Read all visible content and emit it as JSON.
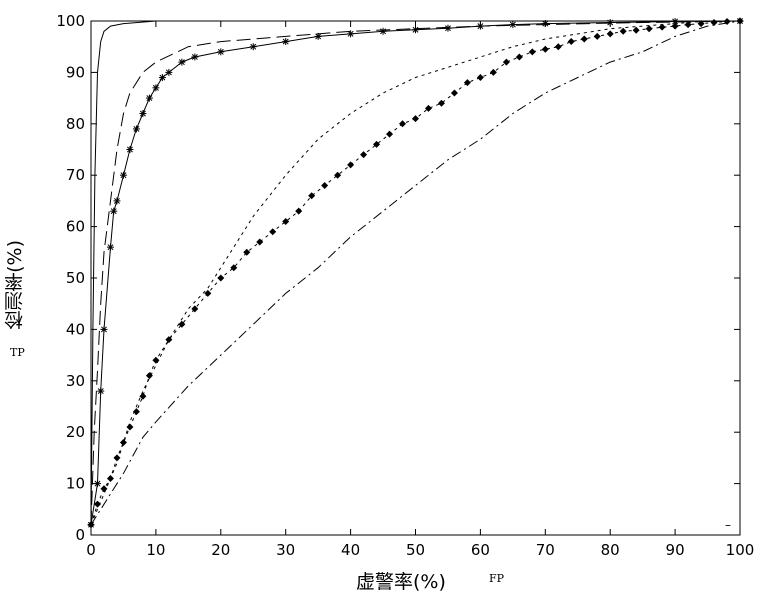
{
  "chart_data": {
    "type": "line",
    "xlabel": "虚警率(%)",
    "ylabel": "检测率(%)",
    "x_note": "FP",
    "y_note": "TP",
    "xlim": [
      0,
      100
    ],
    "ylim": [
      0,
      100
    ],
    "xticks": [
      0,
      10,
      20,
      30,
      40,
      50,
      60,
      70,
      80,
      90,
      100
    ],
    "yticks": [
      0,
      10,
      20,
      30,
      40,
      50,
      60,
      70,
      80,
      90,
      100
    ],
    "grid": false,
    "legend_marker": "–",
    "series": [
      {
        "style": "solid",
        "marker": "none",
        "x": [
          0,
          0.3,
          0.6,
          1,
          1.5,
          2,
          3,
          5,
          10,
          20,
          50,
          100
        ],
        "y": [
          2,
          40,
          70,
          90,
          96,
          98,
          99,
          99.5,
          100,
          100,
          100,
          100
        ]
      },
      {
        "style": "dashed",
        "marker": "none",
        "x": [
          0,
          0.5,
          1,
          1.5,
          2,
          3,
          4,
          5,
          6,
          8,
          10,
          15,
          20,
          30,
          40,
          50,
          60,
          70,
          80,
          90,
          100
        ],
        "y": [
          2,
          20,
          32,
          45,
          55,
          65,
          75,
          82,
          86,
          90,
          92,
          95,
          96,
          97,
          98,
          98.5,
          99,
          99.3,
          99.6,
          99.8,
          100
        ]
      },
      {
        "style": "solid",
        "marker": "star",
        "x": [
          0,
          1,
          1.5,
          2,
          3,
          3.5,
          4,
          5,
          6,
          7,
          8,
          9,
          10,
          11,
          12,
          14,
          16,
          20,
          25,
          30,
          35,
          40,
          45,
          50,
          55,
          60,
          65,
          70,
          80,
          90,
          100
        ],
        "y": [
          2,
          10,
          28,
          40,
          56,
          63,
          65,
          70,
          75,
          79,
          82,
          85,
          87,
          89,
          90,
          92,
          93,
          94,
          95,
          96,
          97,
          97.5,
          98,
          98.3,
          98.6,
          99,
          99.3,
          99.5,
          99.7,
          99.9,
          100
        ]
      },
      {
        "style": "dotted",
        "marker": "none",
        "x": [
          0,
          2,
          4,
          6,
          8,
          10,
          12,
          15,
          18,
          20,
          25,
          30,
          35,
          40,
          45,
          50,
          55,
          60,
          65,
          70,
          75,
          80,
          85,
          90,
          95,
          100
        ],
        "y": [
          2,
          8,
          14,
          22,
          28,
          33,
          38,
          44,
          48,
          52,
          62,
          70,
          77,
          82,
          86,
          89,
          91,
          93,
          95,
          96.5,
          97.5,
          98.5,
          99,
          99.5,
          100,
          100
        ]
      },
      {
        "style": "dotted",
        "marker": "diamond",
        "x": [
          0,
          1,
          2,
          3,
          4,
          5,
          6,
          7,
          8,
          9,
          10,
          12,
          14,
          16,
          18,
          20,
          22,
          24,
          26,
          28,
          30,
          32,
          34,
          36,
          38,
          40,
          42,
          44,
          46,
          48,
          50,
          52,
          54,
          56,
          58,
          60,
          62,
          64,
          66,
          68,
          70,
          72,
          74,
          76,
          78,
          80,
          82,
          84,
          86,
          88,
          90,
          92,
          94,
          96,
          98,
          100
        ],
        "y": [
          2,
          6,
          9,
          11,
          15,
          18,
          21,
          24,
          27,
          31,
          34,
          38,
          41,
          44,
          47,
          50,
          52,
          55,
          57,
          59,
          61,
          63,
          66,
          68,
          70,
          72,
          74,
          76,
          78,
          80,
          81,
          83,
          84,
          86,
          88,
          89,
          90,
          92,
          93,
          94,
          94.5,
          95,
          96,
          96.5,
          97,
          97.5,
          98,
          98.2,
          98.5,
          98.8,
          99,
          99.3,
          99.5,
          99.7,
          99.9,
          100
        ]
      },
      {
        "style": "dashdot",
        "marker": "none",
        "x": [
          0,
          2,
          5,
          8,
          10,
          15,
          20,
          25,
          30,
          35,
          40,
          45,
          50,
          55,
          60,
          65,
          70,
          75,
          80,
          85,
          90,
          95,
          100
        ],
        "y": [
          2,
          6,
          12,
          19,
          22,
          29,
          35,
          41,
          47,
          52,
          58,
          63,
          68,
          73,
          77,
          82,
          86,
          89,
          92,
          94,
          97,
          99,
          100
        ]
      }
    ]
  }
}
